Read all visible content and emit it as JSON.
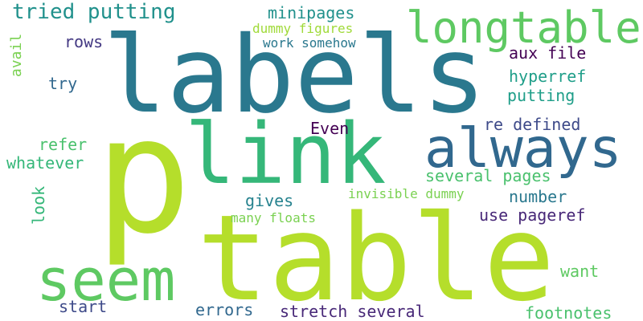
{
  "words": {
    "p": {
      "text": "p",
      "color": "#b5de2b"
    },
    "labels": {
      "text": "labels",
      "color": "#2a788e"
    },
    "table": {
      "text": "table",
      "color": "#b5de2b"
    },
    "link": {
      "text": "link",
      "color": "#35b779"
    },
    "always": {
      "text": "always",
      "color": "#31688e"
    },
    "seem": {
      "text": "seem",
      "color": "#5ec962"
    },
    "longtable": {
      "text": "longtable",
      "color": "#5ec962"
    },
    "tried_putting": {
      "text": "tried putting",
      "color": "#21918c"
    },
    "minipages": {
      "text": "minipages",
      "color": "#21918c"
    },
    "dummy_figures": {
      "text": "dummy figures",
      "color": "#a0da39"
    },
    "work_somehow": {
      "text": "work somehow",
      "color": "#2a788e"
    },
    "rows": {
      "text": "rows",
      "color": "#443983"
    },
    "aux_file": {
      "text": "aux file",
      "color": "#440154"
    },
    "try": {
      "text": "try",
      "color": "#31688e"
    },
    "hyperref": {
      "text": "hyperref",
      "color": "#1f9e89"
    },
    "putting": {
      "text": "putting",
      "color": "#1f9e89"
    },
    "even": {
      "text": "Even",
      "color": "#440154"
    },
    "re_defined": {
      "text": "re defined",
      "color": "#3e4a89"
    },
    "refer": {
      "text": "refer",
      "color": "#4ac16d"
    },
    "whatever": {
      "text": "whatever",
      "color": "#35b779"
    },
    "several_pages": {
      "text": "several pages",
      "color": "#4ac16d"
    },
    "invisible_dummy": {
      "text": "invisible dummy",
      "color": "#7ad151"
    },
    "number": {
      "text": "number",
      "color": "#2a788e"
    },
    "gives": {
      "text": "gives",
      "color": "#26828e"
    },
    "use_pageref": {
      "text": "use pageref",
      "color": "#482878"
    },
    "many_floats": {
      "text": "many floats",
      "color": "#7ad151"
    },
    "want": {
      "text": "want",
      "color": "#5ec962"
    },
    "start": {
      "text": "start",
      "color": "#3e4a89"
    },
    "errors": {
      "text": "errors",
      "color": "#31688e"
    },
    "stretch_several": {
      "text": "stretch several",
      "color": "#482878"
    },
    "footnotes": {
      "text": "footnotes",
      "color": "#4ac16d"
    },
    "avail": {
      "text": "avail",
      "color": "#7ad151"
    },
    "look": {
      "text": "look",
      "color": "#35b779"
    }
  }
}
